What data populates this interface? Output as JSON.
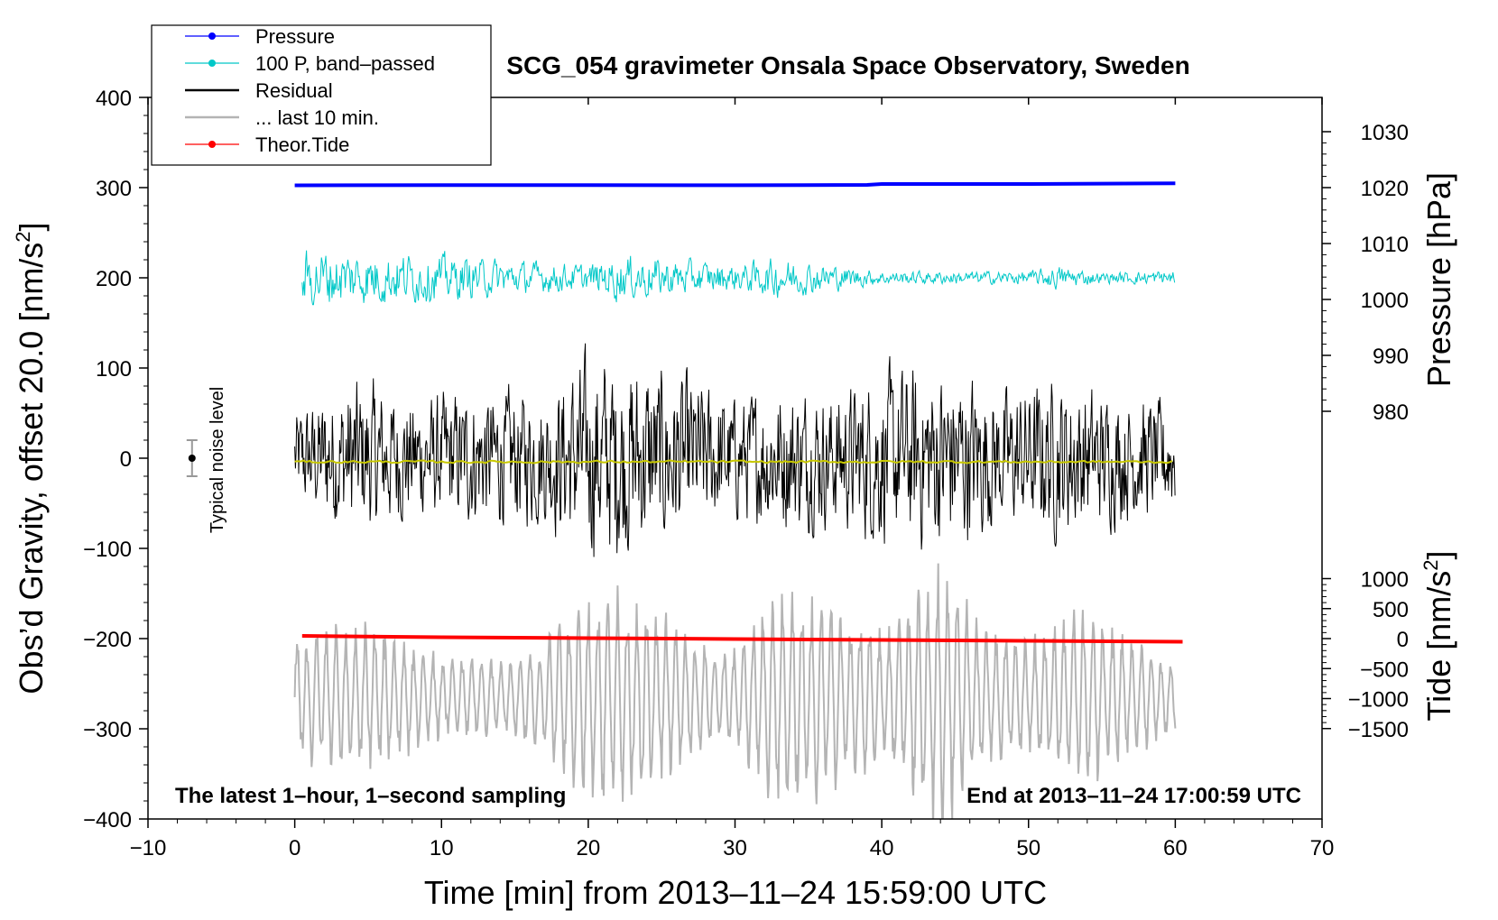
{
  "chart_data": {
    "type": "line",
    "title": "SCG_054 gravimeter Onsala Space Observatory, Sweden",
    "xlabel": "Time [min] from 2013–11–24 15:59:00 UTC",
    "ylabel_main": "Obs’d Gravity, offset 20.0 [nm/s",
    "ylabel_main_sup": "2",
    "ylabel_main_end": "]",
    "ylabel_pressure": "Pressure [hPa]",
    "ylabel_tide": "Tide [nm/s",
    "ylabel_tide_sup": "2",
    "ylabel_tide_end": "]",
    "xlim": [
      -10,
      70
    ],
    "ylim": [
      -400,
      400
    ],
    "x_ticks": [
      -10,
      0,
      10,
      20,
      30,
      40,
      50,
      60,
      70
    ],
    "x_tick_labels": [
      "−10",
      "0",
      "10",
      "20",
      "30",
      "40",
      "50",
      "60",
      "70"
    ],
    "y_ticks": [
      -400,
      -300,
      -200,
      -100,
      0,
      100,
      200,
      300,
      400
    ],
    "y_tick_labels": [
      "−400",
      "−300",
      "−200",
      "−100",
      "0",
      "100",
      "200",
      "300",
      "400"
    ],
    "pressure_axis": {
      "ticks": [
        980,
        990,
        1000,
        1010,
        1020,
        1030
      ],
      "tick_labels": [
        "980",
        "990",
        "1000",
        "1010",
        "1020",
        "1030"
      ],
      "main_value_at_1020": 300,
      "main_units_per_hPa": 10
    },
    "tide_axis": {
      "ticks": [
        -1500,
        -1000,
        -500,
        0,
        500,
        1000
      ],
      "tick_labels": [
        "−1500",
        "−1000",
        "−500",
        "0",
        "500",
        "1000"
      ],
      "main_value_at_0": -200,
      "main_units_per_nms2": 0.133
    },
    "legend": [
      {
        "label": "Pressure",
        "color": "#0000ff",
        "marker": true
      },
      {
        "label": "100 P, band–passed",
        "color": "#00c8c8",
        "marker": true
      },
      {
        "label": "Residual",
        "color": "#000000",
        "marker": false
      },
      {
        "label": "... last 10 min.",
        "color": "#b4b4b4",
        "marker": false
      },
      {
        "label": "Theor.Tide",
        "color": "#ff0000",
        "marker": true
      }
    ],
    "legend_position": "top-left",
    "noise_bar": {
      "label": "Typical noise level",
      "x": -7,
      "y": 0,
      "half_range": 20
    },
    "annotations": {
      "bottom_left": "The latest 1–hour, 1–second sampling",
      "bottom_right": "End at 2013–11–24 17:00:59 UTC"
    },
    "series": [
      {
        "name": "Pressure",
        "color": "#0000ff",
        "x": [
          0,
          10,
          20,
          30,
          39,
          40,
          50,
          60
        ],
        "y": [
          302.5,
          302.8,
          302.8,
          302.6,
          303,
          304,
          304,
          304.8
        ]
      },
      {
        "name": "100 P, band–passed",
        "color": "#00c8c8",
        "x_range": [
          0.5,
          60
        ],
        "baseline": 200,
        "envelope": [
          [
            0.5,
            45
          ],
          [
            10,
            35
          ],
          [
            15,
            25
          ],
          [
            20,
            20
          ],
          [
            22,
            35
          ],
          [
            30,
            20
          ],
          [
            33,
            30
          ],
          [
            40,
            10
          ],
          [
            50,
            10
          ],
          [
            52,
            18
          ],
          [
            55,
            8
          ],
          [
            60,
            12
          ]
        ]
      },
      {
        "name": "Residual",
        "color": "#000000",
        "x_range": [
          0,
          60
        ],
        "baseline": 0,
        "envelope": [
          [
            0,
            70
          ],
          [
            4,
            120
          ],
          [
            8,
            90
          ],
          [
            12,
            100
          ],
          [
            17,
            100
          ],
          [
            20,
            150
          ],
          [
            22,
            150
          ],
          [
            24,
            140
          ],
          [
            27,
            120
          ],
          [
            30,
            90
          ],
          [
            33,
            110
          ],
          [
            37,
            100
          ],
          [
            40,
            130
          ],
          [
            45,
            140
          ],
          [
            48,
            100
          ],
          [
            52,
            120
          ],
          [
            55,
            100
          ],
          [
            60,
            80
          ]
        ]
      },
      {
        "name": "... last 10 min.",
        "color": "#b4b4b4",
        "x_range": [
          0,
          60
        ],
        "baseline": -265,
        "envelope": [
          [
            0,
            80
          ],
          [
            5,
            90
          ],
          [
            10,
            50
          ],
          [
            15,
            45
          ],
          [
            20,
            120
          ],
          [
            23,
            130
          ],
          [
            27,
            70
          ],
          [
            30,
            60
          ],
          [
            33,
            140
          ],
          [
            37,
            110
          ],
          [
            40,
            80
          ],
          [
            44,
            160
          ],
          [
            47,
            80
          ],
          [
            50,
            70
          ],
          [
            54,
            110
          ],
          [
            57,
            70
          ],
          [
            60,
            40
          ]
        ]
      },
      {
        "name": "Theor.Tide",
        "color": "#ff0000",
        "x": [
          0.5,
          10,
          20,
          30,
          40,
          50,
          60.5
        ],
        "y": [
          -197,
          -198.5,
          -199.5,
          -200.5,
          -201.5,
          -202.5,
          -203.5
        ]
      },
      {
        "name": "Residual mean",
        "color": "#c8c800",
        "x_range": [
          0,
          60
        ],
        "baseline": -4,
        "envelope": [
          [
            0,
            2
          ],
          [
            60,
            2
          ]
        ]
      }
    ]
  }
}
